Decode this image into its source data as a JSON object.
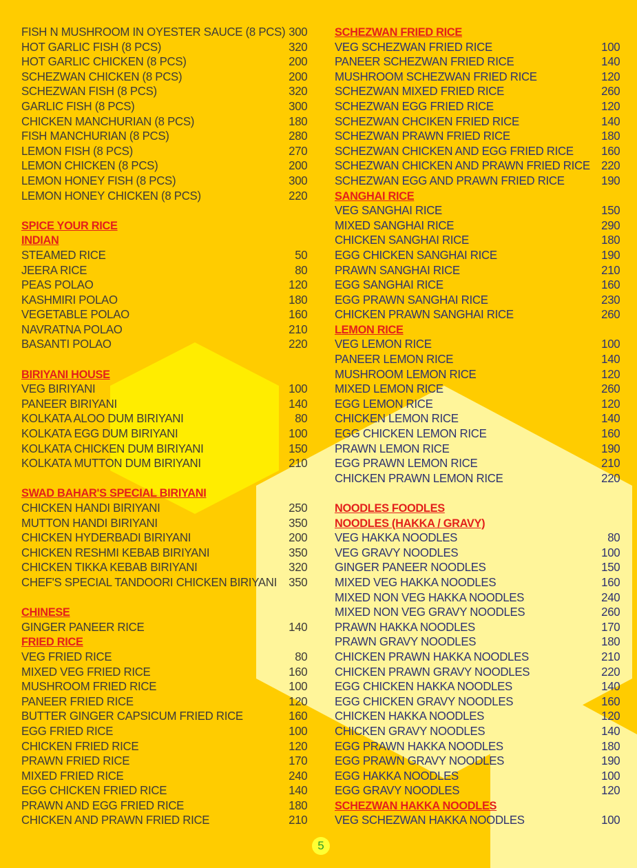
{
  "colors": {
    "background": "#ffcc00",
    "heading": "#e3201b",
    "left_text": "#3d3a3a",
    "right_text": "#2e3270"
  },
  "page_number": "5",
  "left_column": [
    {
      "type": "item",
      "name": "FISH N MUSHROOM IN OYESTER SAUCE (8 PCS)",
      "price": "300"
    },
    {
      "type": "item",
      "name": "HOT GARLIC FISH (8 PCS)",
      "price": "320"
    },
    {
      "type": "item",
      "name": "HOT GARLIC CHICKEN (8 PCS)",
      "price": "200"
    },
    {
      "type": "item",
      "name": "SCHEZWAN CHICKEN (8 PCS)",
      "price": "200"
    },
    {
      "type": "item",
      "name": "SCHEZWAN FISH (8 PCS)",
      "price": "320"
    },
    {
      "type": "item",
      "name": "GARLIC FISH (8 PCS)",
      "price": "300"
    },
    {
      "type": "item",
      "name": "CHICKEN MANCHURIAN (8 PCS)",
      "price": "180"
    },
    {
      "type": "item",
      "name": "FISH MANCHURIAN (8 PCS)",
      "price": "280"
    },
    {
      "type": "item",
      "name": "LEMON FISH (8 PCS)",
      "price": "270"
    },
    {
      "type": "item",
      "name": "LEMON CHICKEN (8 PCS)",
      "price": "200"
    },
    {
      "type": "item",
      "name": "LEMON HONEY FISH (8 PCS)",
      "price": "300"
    },
    {
      "type": "item",
      "name": "LEMON HONEY CHICKEN (8 PCS)",
      "price": "220"
    },
    {
      "type": "blank"
    },
    {
      "type": "heading",
      "name": "SPICE YOUR RICE"
    },
    {
      "type": "heading",
      "name": "INDIAN"
    },
    {
      "type": "item",
      "name": "STEAMED RICE",
      "price": "50"
    },
    {
      "type": "item",
      "name": "JEERA RICE",
      "price": "80"
    },
    {
      "type": "item",
      "name": "PEAS POLAO",
      "price": "120"
    },
    {
      "type": "item",
      "name": "KASHMIRI POLAO",
      "price": "180"
    },
    {
      "type": "item",
      "name": "VEGETABLE POLAO",
      "price": "160"
    },
    {
      "type": "item",
      "name": "NAVRATNA POLAO",
      "price": "210"
    },
    {
      "type": "item",
      "name": "BASANTI POLAO",
      "price": "220"
    },
    {
      "type": "blank"
    },
    {
      "type": "heading",
      "name": "BIRIYANI HOUSE"
    },
    {
      "type": "item",
      "name": "VEG BIRIYANI",
      "price": "100"
    },
    {
      "type": "item",
      "name": "PANEER BIRIYANI",
      "price": "140"
    },
    {
      "type": "item",
      "name": "KOLKATA ALOO DUM BIRIYANI",
      "price": "80"
    },
    {
      "type": "item",
      "name": "KOLKATA EGG DUM BIRIYANI",
      "price": "100"
    },
    {
      "type": "item",
      "name": "KOLKATA CHICKEN DUM BIRIYANI",
      "price": "150"
    },
    {
      "type": "item",
      "name": "KOLKATA MUTTON DUM BIRIYANI",
      "price": "210"
    },
    {
      "type": "blank"
    },
    {
      "type": "heading",
      "name": "SWAD BAHAR'S SPECIAL BIRIYANI"
    },
    {
      "type": "item",
      "name": "CHICKEN HANDI BIRIYANI",
      "price": "250"
    },
    {
      "type": "item",
      "name": "MUTTON HANDI BIRIYANI",
      "price": "350"
    },
    {
      "type": "item",
      "name": "CHICKEN HYDERBADI BIRIYANI",
      "price": "200"
    },
    {
      "type": "item",
      "name": "CHICKEN RESHMI KEBAB BIRIYANI",
      "price": "350"
    },
    {
      "type": "item",
      "name": "CHICKEN TIKKA KEBAB BIRIYANI",
      "price": "320"
    },
    {
      "type": "item",
      "name": "CHEF'S SPECIAL TANDOORI CHICKEN BIRIYANI",
      "price": "350"
    },
    {
      "type": "blank"
    },
    {
      "type": "heading",
      "name": "CHINESE"
    },
    {
      "type": "item",
      "name": "GINGER PANEER RICE",
      "price": "140"
    },
    {
      "type": "heading",
      "name": "FRIED RICE"
    },
    {
      "type": "item",
      "name": "VEG FRIED RICE",
      "price": "80"
    },
    {
      "type": "item",
      "name": "MIXED VEG FRIED RICE",
      "price": "160"
    },
    {
      "type": "item",
      "name": "MUSHROOM FRIED RICE",
      "price": "100"
    },
    {
      "type": "item",
      "name": "PANEER FRIED RICE",
      "price": "120"
    },
    {
      "type": "item",
      "name": "BUTTER GINGER CAPSICUM FRIED RICE",
      "price": "160"
    },
    {
      "type": "item",
      "name": "EGG FRIED RICE",
      "price": "100"
    },
    {
      "type": "item",
      "name": "CHICKEN FRIED RICE",
      "price": "120"
    },
    {
      "type": "item",
      "name": "PRAWN FRIED RICE",
      "price": "170"
    },
    {
      "type": "item",
      "name": "MIXED FRIED RICE",
      "price": "240"
    },
    {
      "type": "item",
      "name": "EGG CHICKEN FRIED RICE",
      "price": "140"
    },
    {
      "type": "item",
      "name": "PRAWN AND EGG FRIED RICE",
      "price": "180"
    },
    {
      "type": "item",
      "name": "CHICKEN AND PRAWN FRIED RICE",
      "price": "210"
    }
  ],
  "right_column": [
    {
      "type": "heading",
      "name": "SCHEZWAN FRIED RICE"
    },
    {
      "type": "item",
      "name": "VEG SCHEZWAN FRIED RICE",
      "price": "100"
    },
    {
      "type": "item",
      "name": "PANEER SCHEZWAN FRIED RICE",
      "price": "140"
    },
    {
      "type": "item",
      "name": "MUSHROOM SCHEZWAN FRIED RICE",
      "price": "120"
    },
    {
      "type": "item",
      "name": "SCHEZWAN MIXED FRIED RICE",
      "price": "260"
    },
    {
      "type": "item",
      "name": "SCHEZWAN EGG FRIED RICE",
      "price": "120"
    },
    {
      "type": "item",
      "name": "SCHEZWAN CHCIKEN FRIED RICE",
      "price": "140"
    },
    {
      "type": "item",
      "name": "SCHEZWAN PRAWN FRIED RICE",
      "price": "180"
    },
    {
      "type": "item",
      "name": "SCHEZWAN CHICKEN AND EGG FRIED RICE",
      "price": "160"
    },
    {
      "type": "item",
      "name": "SCHEZWAN CHICKEN AND PRAWN FRIED RICE",
      "price": "220"
    },
    {
      "type": "item",
      "name": "SCHEZWAN EGG AND PRAWN FRIED RICE",
      "price": "190"
    },
    {
      "type": "heading",
      "name": "SANGHAI RICE"
    },
    {
      "type": "item",
      "name": "VEG SANGHAI RICE",
      "price": "150"
    },
    {
      "type": "item",
      "name": "MIXED SANGHAI RICE",
      "price": "290"
    },
    {
      "type": "item",
      "name": "CHICKEN SANGHAI RICE",
      "price": "180"
    },
    {
      "type": "item",
      "name": "EGG CHICKEN SANGHAI RICE",
      "price": "190"
    },
    {
      "type": "item",
      "name": "PRAWN SANGHAI RICE",
      "price": "210"
    },
    {
      "type": "item",
      "name": "EGG SANGHAI RICE",
      "price": "160"
    },
    {
      "type": "item",
      "name": "EGG PRAWN SANGHAI RICE",
      "price": "230"
    },
    {
      "type": "item",
      "name": "CHICKEN PRAWN SANGHAI RICE",
      "price": "260"
    },
    {
      "type": "heading",
      "name": "LEMON RICE"
    },
    {
      "type": "item",
      "name": "VEG LEMON RICE",
      "price": "100"
    },
    {
      "type": "item",
      "name": "PANEER LEMON RICE",
      "price": "140"
    },
    {
      "type": "item",
      "name": "MUSHROOM LEMON RICE",
      "price": "120"
    },
    {
      "type": "item",
      "name": "MIXED LEMON RICE",
      "price": "260"
    },
    {
      "type": "item",
      "name": "EGG LEMON RICE",
      "price": "120"
    },
    {
      "type": "item",
      "name": "CHICKEN LEMON RICE",
      "price": "140"
    },
    {
      "type": "item",
      "name": "EGG CHICKEN LEMON RICE",
      "price": "160"
    },
    {
      "type": "item",
      "name": "PRAWN LEMON RICE",
      "price": "190"
    },
    {
      "type": "item",
      "name": "EGG PRAWN LEMON RICE",
      "price": "210"
    },
    {
      "type": "item",
      "name": "CHICKEN PRAWN LEMON RICE",
      "price": "220"
    },
    {
      "type": "blank"
    },
    {
      "type": "heading",
      "name": "NOODLES FOODLES"
    },
    {
      "type": "heading",
      "name": "NOODLES (HAKKA / GRAVY)"
    },
    {
      "type": "item",
      "name": "VEG HAKKA NOODLES",
      "price": "80"
    },
    {
      "type": "item",
      "name": "VEG GRAVY NOODLES",
      "price": "100"
    },
    {
      "type": "item",
      "name": "GINGER PANEER NOODLES",
      "price": "150"
    },
    {
      "type": "item",
      "name": "MIXED VEG HAKKA NOODLES",
      "price": "160"
    },
    {
      "type": "item",
      "name": "MIXED NON VEG HAKKA NOODLES",
      "price": "240"
    },
    {
      "type": "item",
      "name": "MIXED NON VEG GRAVY NOODLES",
      "price": "260"
    },
    {
      "type": "item",
      "name": "PRAWN HAKKA NOODLES",
      "price": "170"
    },
    {
      "type": "item",
      "name": "PRAWN GRAVY NOODLES",
      "price": "180"
    },
    {
      "type": "item",
      "name": "CHICKEN PRAWN HAKKA NOODLES",
      "price": "210"
    },
    {
      "type": "item",
      "name": "CHICKEN PRAWN GRAVY NOODLES",
      "price": "220"
    },
    {
      "type": "item",
      "name": "EGG CHICKEN HAKKA NOODLES",
      "price": "140"
    },
    {
      "type": "item",
      "name": "EGG CHICKEN GRAVY NOODLES",
      "price": "160"
    },
    {
      "type": "item",
      "name": "CHICKEN HAKKA NOODLES",
      "price": "120"
    },
    {
      "type": "item",
      "name": "CHICKEN GRAVY NOODLES",
      "price": "140"
    },
    {
      "type": "item",
      "name": "EGG PRAWN HAKKA NOODLES",
      "price": "180"
    },
    {
      "type": "item",
      "name": "EGG PRAWN GRAVY NOODLES",
      "price": "190"
    },
    {
      "type": "item",
      "name": "EGG HAKKA NOODLES",
      "price": "100"
    },
    {
      "type": "item",
      "name": "EGG GRAVY NOODLES",
      "price": "120"
    },
    {
      "type": "heading",
      "name": "SCHEZWAN HAKKA NOODLES"
    },
    {
      "type": "item",
      "name": "VEG SCHEZWAN HAKKA NOODLES",
      "price": "100"
    }
  ]
}
